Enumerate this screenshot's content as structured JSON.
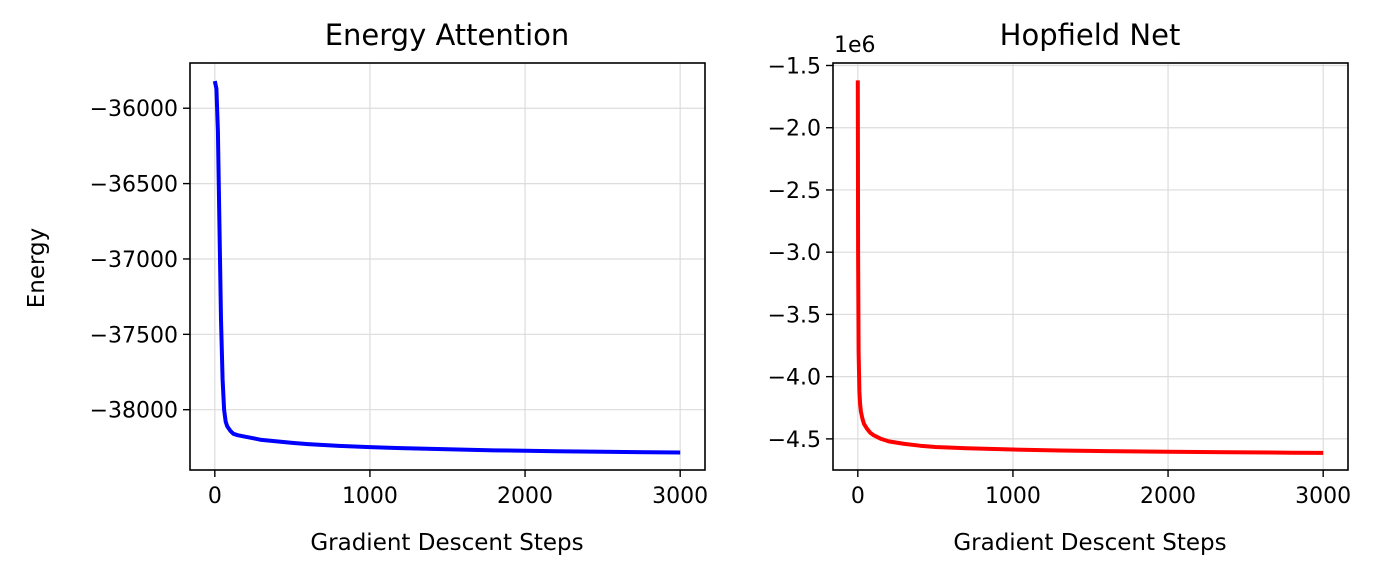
{
  "chart_data": [
    {
      "type": "line",
      "title": "Energy Attention",
      "xlabel": "Gradient Descent Steps",
      "ylabel": "Energy",
      "xlim": [
        -160,
        3160
      ],
      "ylim": [
        -38400,
        -35700
      ],
      "xticks": [
        0,
        1000,
        2000,
        3000
      ],
      "xtick_labels": [
        "0",
        "1000",
        "2000",
        "3000"
      ],
      "yticks": [
        -36000,
        -36500,
        -37000,
        -37500,
        -38000
      ],
      "ytick_labels": [
        "−36000",
        "−36500",
        "−37000",
        "−37500",
        "−38000"
      ],
      "offset_text": "",
      "grid": true,
      "series": [
        {
          "color": "#0000ff",
          "x": [
            0,
            10,
            20,
            30,
            40,
            50,
            60,
            70,
            80,
            100,
            120,
            150,
            200,
            250,
            300,
            400,
            500,
            600,
            800,
            1000,
            1200,
            1500,
            1800,
            2000,
            2200,
            2500,
            2800,
            3000
          ],
          "y": [
            -35820,
            -35870,
            -36150,
            -36800,
            -37400,
            -37800,
            -38000,
            -38080,
            -38110,
            -38140,
            -38160,
            -38170,
            -38180,
            -38190,
            -38200,
            -38210,
            -38220,
            -38228,
            -38240,
            -38248,
            -38255,
            -38263,
            -38270,
            -38272,
            -38275,
            -38279,
            -38282,
            -38284
          ]
        }
      ]
    },
    {
      "type": "line",
      "title": "Hopfield Net",
      "xlabel": "Gradient Descent Steps",
      "ylabel": "",
      "xlim": [
        -160,
        3160
      ],
      "ylim": [
        -4.75,
        -1.48
      ],
      "xticks": [
        0,
        1000,
        2000,
        3000
      ],
      "xtick_labels": [
        "0",
        "1000",
        "2000",
        "3000"
      ],
      "yticks": [
        -1.5,
        -2.0,
        -2.5,
        -3.0,
        -3.5,
        -4.0,
        -4.5
      ],
      "ytick_labels": [
        "−1.5",
        "−2.0",
        "−2.5",
        "−3.0",
        "−3.5",
        "−4.0",
        "−4.5"
      ],
      "offset_text": "1e6",
      "grid": true,
      "series": [
        {
          "color": "#ff0000",
          "x": [
            0,
            2,
            5,
            10,
            15,
            20,
            30,
            40,
            60,
            80,
            100,
            150,
            200,
            300,
            400,
            500,
            700,
            1000,
            1300,
            1600,
            2000,
            2400,
            2800,
            3000
          ],
          "y": [
            -1.62,
            -3.0,
            -3.8,
            -4.12,
            -4.22,
            -4.28,
            -4.34,
            -4.38,
            -4.42,
            -4.45,
            -4.47,
            -4.5,
            -4.52,
            -4.54,
            -4.555,
            -4.565,
            -4.575,
            -4.585,
            -4.593,
            -4.598,
            -4.603,
            -4.607,
            -4.611,
            -4.613
          ]
        }
      ]
    }
  ]
}
